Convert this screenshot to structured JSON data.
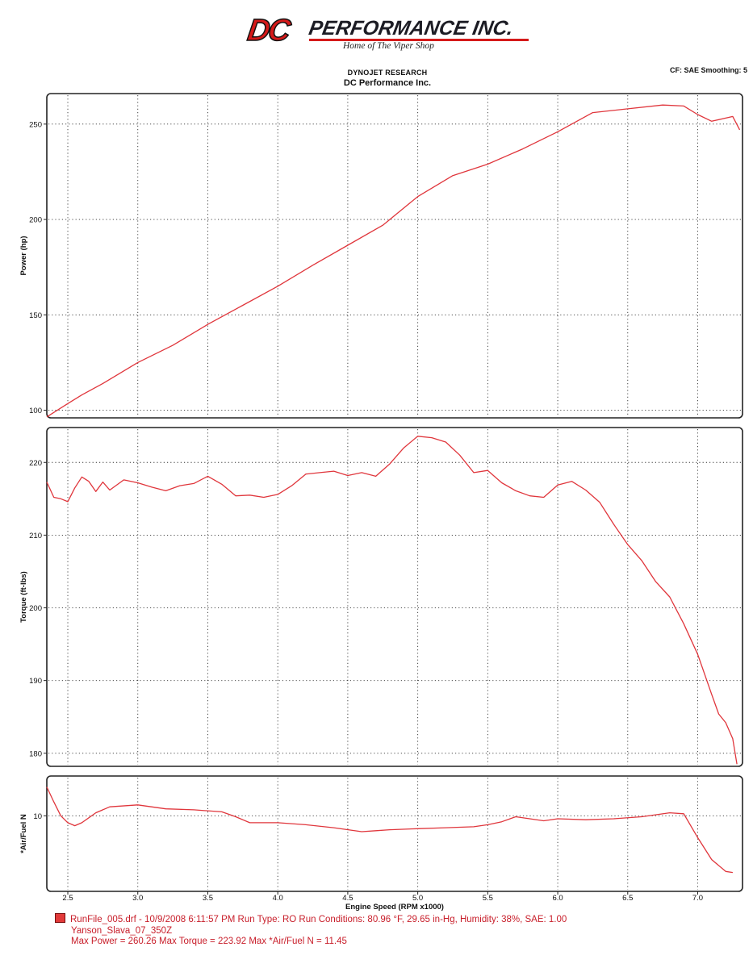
{
  "logo": {
    "dc": "DC",
    "name": "PERFORMANCE INC.",
    "tagline": "Home of The Viper Shop"
  },
  "header": {
    "line1": "DYNOJET RESEARCH",
    "line2": "DC Performance Inc.",
    "right": "CF: SAE  Smoothing: 5"
  },
  "colors": {
    "trace": "#e0363c",
    "grid": "#333333",
    "frame": "#222222"
  },
  "chart_data": [
    {
      "type": "line",
      "ylabel": "Power (hp)",
      "xlabel": "",
      "xlim": [
        2.35,
        7.32
      ],
      "ylim": [
        96,
        266
      ],
      "x_gridlines": [
        2.5,
        3.0,
        3.5,
        4.0,
        4.5,
        5.0,
        5.5,
        6.0,
        6.5,
        7.0
      ],
      "yticks": [
        100,
        150,
        200,
        250
      ],
      "ytick_labels": [
        "100",
        "150",
        "200",
        "250"
      ],
      "grid": true,
      "series": [
        {
          "x": [
            2.35,
            2.5,
            2.6,
            2.75,
            3.0,
            3.25,
            3.5,
            3.75,
            4.0,
            4.25,
            4.5,
            4.75,
            5.0,
            5.25,
            5.5,
            5.75,
            6.0,
            6.25,
            6.5,
            6.75,
            6.9,
            7.0,
            7.1,
            7.25,
            7.3
          ],
          "y": [
            96.5,
            103.5,
            108,
            114,
            125,
            134,
            145,
            155,
            165,
            176,
            186.5,
            197,
            212,
            223,
            229,
            237,
            246,
            256,
            258,
            260,
            259.5,
            255,
            251.5,
            254,
            247
          ]
        }
      ]
    },
    {
      "type": "line",
      "ylabel": "Torque (ft-lbs)",
      "xlabel": "",
      "xlim": [
        2.35,
        7.32
      ],
      "ylim": [
        178.2,
        224.8
      ],
      "x_gridlines": [
        2.5,
        3.0,
        3.5,
        4.0,
        4.5,
        5.0,
        5.5,
        6.0,
        6.5,
        7.0
      ],
      "yticks": [
        180,
        190,
        200,
        210,
        220
      ],
      "ytick_labels": [
        "180",
        "190",
        "200",
        "210",
        "220"
      ],
      "grid": true,
      "series": [
        {
          "x": [
            2.35,
            2.4,
            2.45,
            2.5,
            2.55,
            2.6,
            2.65,
            2.7,
            2.75,
            2.8,
            2.9,
            3.0,
            3.1,
            3.2,
            3.3,
            3.4,
            3.5,
            3.6,
            3.7,
            3.8,
            3.9,
            4.0,
            4.1,
            4.2,
            4.3,
            4.4,
            4.5,
            4.6,
            4.7,
            4.8,
            4.9,
            5.0,
            5.1,
            5.2,
            5.3,
            5.4,
            5.5,
            5.6,
            5.7,
            5.8,
            5.9,
            6.0,
            6.1,
            6.2,
            6.3,
            6.4,
            6.5,
            6.6,
            6.7,
            6.8,
            6.9,
            7.0,
            7.1,
            7.15,
            7.2,
            7.25,
            7.28
          ],
          "y": [
            217.3,
            215.2,
            215.0,
            214.6,
            216.5,
            218.0,
            217.4,
            216.0,
            217.3,
            216.2,
            217.6,
            217.2,
            216.6,
            216.1,
            216.8,
            217.1,
            218.1,
            217.0,
            215.4,
            215.5,
            215.2,
            215.6,
            216.8,
            218.4,
            218.6,
            218.8,
            218.2,
            218.6,
            218.1,
            219.8,
            222.0,
            223.6,
            223.4,
            222.8,
            221.0,
            218.6,
            218.9,
            217.2,
            216.1,
            215.4,
            215.2,
            216.9,
            217.4,
            216.2,
            214.5,
            211.5,
            208.7,
            206.5,
            203.6,
            201.5,
            197.8,
            193.6,
            188.1,
            185.4,
            184.2,
            182.0,
            178.5
          ]
        }
      ]
    },
    {
      "type": "line",
      "ylabel": "*Air/Fuel N",
      "xlabel": "Engine Speed (RPM x1000)",
      "xlim": [
        2.35,
        7.32
      ],
      "ylim": [
        6.2,
        12.0
      ],
      "xticks": [
        2.5,
        3.0,
        3.5,
        4.0,
        4.5,
        5.0,
        5.5,
        6.0,
        6.5,
        7.0
      ],
      "xtick_labels": [
        "2.5",
        "3.0",
        "3.5",
        "4.0",
        "4.5",
        "5.0",
        "5.5",
        "6.0",
        "6.5",
        "7.0"
      ],
      "yticks": [
        10
      ],
      "ytick_labels": [
        "10"
      ],
      "grid": true,
      "series": [
        {
          "x": [
            2.35,
            2.4,
            2.45,
            2.5,
            2.55,
            2.6,
            2.7,
            2.8,
            3.0,
            3.2,
            3.4,
            3.6,
            3.7,
            3.8,
            4.0,
            4.2,
            4.4,
            4.6,
            4.7,
            4.8,
            5.0,
            5.2,
            5.4,
            5.5,
            5.6,
            5.7,
            5.8,
            5.9,
            6.0,
            6.2,
            6.4,
            6.6,
            6.8,
            6.9,
            7.0,
            7.1,
            7.2,
            7.25
          ],
          "y": [
            11.45,
            10.7,
            10.0,
            9.65,
            9.5,
            9.65,
            10.15,
            10.45,
            10.55,
            10.35,
            10.3,
            10.2,
            9.95,
            9.65,
            9.65,
            9.55,
            9.4,
            9.2,
            9.25,
            9.3,
            9.35,
            9.4,
            9.45,
            9.55,
            9.7,
            9.95,
            9.85,
            9.75,
            9.85,
            9.8,
            9.85,
            9.95,
            10.15,
            10.1,
            8.9,
            7.8,
            7.2,
            7.15
          ]
        }
      ]
    }
  ],
  "footer": {
    "line1": "RunFile_005.drf - 10/9/2008 6:11:57 PM  Run Type: RO  Run Conditions: 80.96 °F, 29.65 in-Hg,  Humidity:  38%, SAE: 1.00",
    "line2": "Yanson_Slava_07_350Z",
    "line3": "Max Power = 260.26  Max Torque = 223.92  Max *Air/Fuel N = 11.45"
  }
}
